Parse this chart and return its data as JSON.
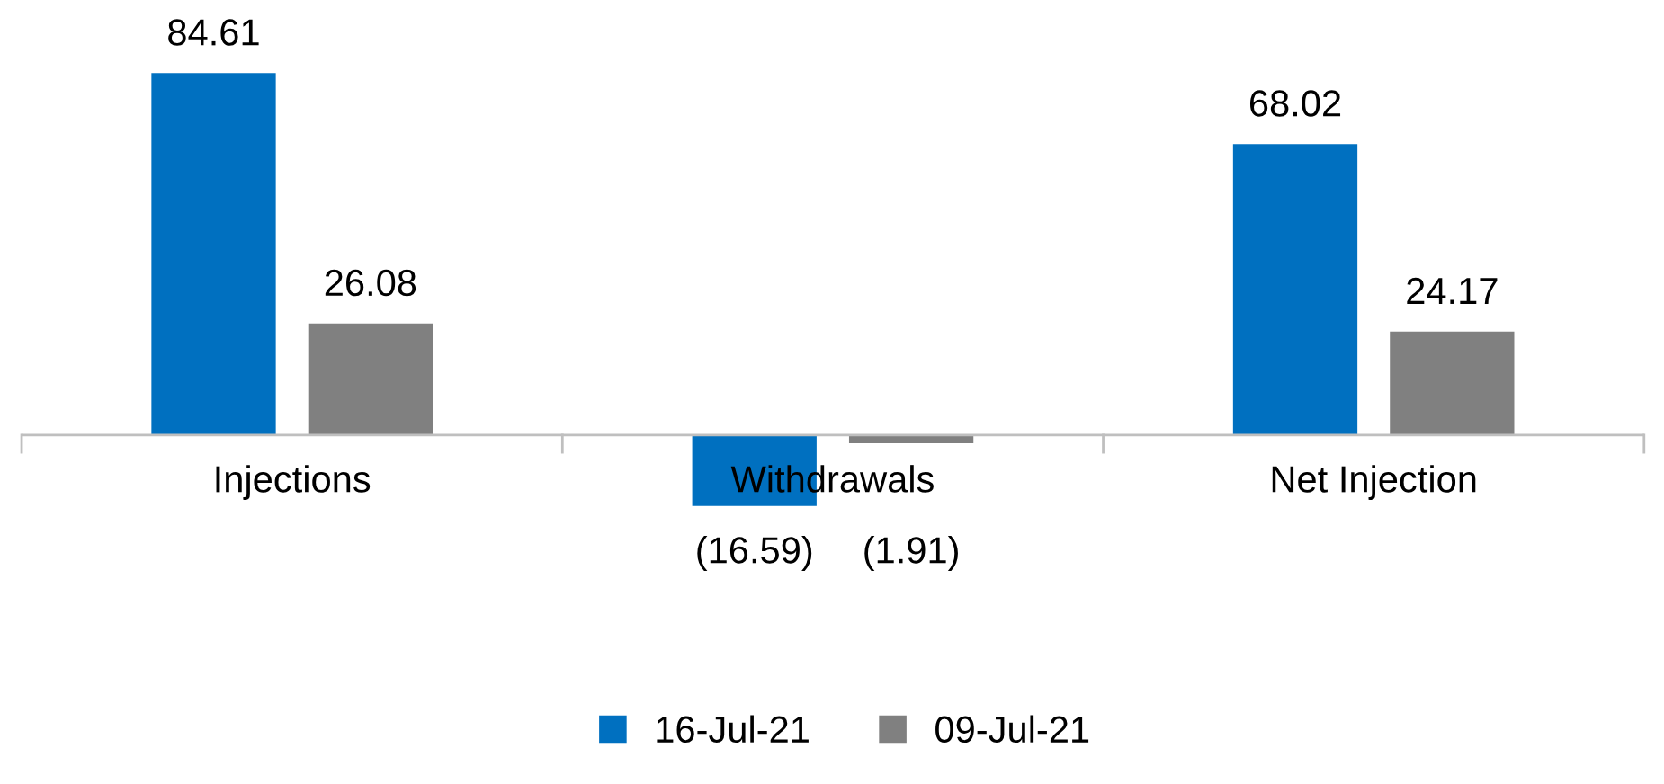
{
  "chart_data": {
    "type": "bar",
    "categories": [
      "Injections",
      "Withdrawals",
      "Net Injection"
    ],
    "series": [
      {
        "name": "16-Jul-21",
        "color": "#0070c0",
        "values": [
          84.61,
          -16.59,
          68.02
        ],
        "value_labels": [
          "84.61",
          "(16.59)",
          "68.02"
        ]
      },
      {
        "name": "09-Jul-21",
        "color": "#808080",
        "values": [
          26.08,
          -1.91,
          24.17
        ],
        "value_labels": [
          "26.08",
          "(1.91)",
          "24.17"
        ]
      }
    ],
    "legend": "bottom"
  }
}
